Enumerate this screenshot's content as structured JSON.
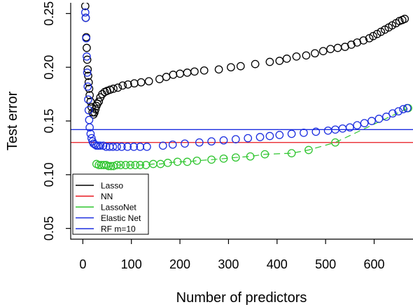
{
  "chart_data": {
    "type": "scatter",
    "title": "",
    "xlabel": "Number of predictors",
    "ylabel": "Test error",
    "xlim": [
      -25,
      680
    ],
    "ylim": [
      0.04,
      0.26
    ],
    "xticks": [
      0,
      100,
      200,
      300,
      400,
      500,
      600
    ],
    "xtick_labels": [
      "0",
      "100",
      "200",
      "300",
      "400",
      "500",
      "600"
    ],
    "yticks": [
      0.05,
      0.1,
      0.15,
      0.2,
      0.25
    ],
    "ytick_labels": [
      "0.05",
      "0.10",
      "0.15",
      "0.20",
      "0.25"
    ],
    "grid": false,
    "legend_position": "bottom-left",
    "series": [
      {
        "name": "Lasso",
        "color": "#000000",
        "marker": "circle",
        "points": [
          [
            5,
            0.257
          ],
          [
            6,
            0.246
          ],
          [
            7,
            0.228
          ],
          [
            8,
            0.218
          ],
          [
            9,
            0.207
          ],
          [
            10,
            0.198
          ],
          [
            11,
            0.192
          ],
          [
            12,
            0.186
          ],
          [
            13,
            0.18
          ],
          [
            14,
            0.174
          ],
          [
            16,
            0.168
          ],
          [
            18,
            0.163
          ],
          [
            20,
            0.158
          ],
          [
            22,
            0.156
          ],
          [
            24,
            0.158
          ],
          [
            26,
            0.161
          ],
          [
            28,
            0.164
          ],
          [
            30,
            0.166
          ],
          [
            33,
            0.168
          ],
          [
            36,
            0.172
          ],
          [
            40,
            0.175
          ],
          [
            45,
            0.177
          ],
          [
            50,
            0.178
          ],
          [
            56,
            0.179
          ],
          [
            63,
            0.18
          ],
          [
            72,
            0.181
          ],
          [
            82,
            0.183
          ],
          [
            93,
            0.184
          ],
          [
            106,
            0.185
          ],
          [
            120,
            0.186
          ],
          [
            136,
            0.187
          ],
          [
            158,
            0.189
          ],
          [
            172,
            0.191
          ],
          [
            186,
            0.193
          ],
          [
            200,
            0.194
          ],
          [
            215,
            0.195
          ],
          [
            230,
            0.196
          ],
          [
            250,
            0.197
          ],
          [
            280,
            0.198
          ],
          [
            305,
            0.2
          ],
          [
            325,
            0.201
          ],
          [
            355,
            0.203
          ],
          [
            385,
            0.205
          ],
          [
            405,
            0.206
          ],
          [
            420,
            0.208
          ],
          [
            440,
            0.21
          ],
          [
            460,
            0.211
          ],
          [
            478,
            0.213
          ],
          [
            495,
            0.215
          ],
          [
            510,
            0.217
          ],
          [
            525,
            0.218
          ],
          [
            540,
            0.219
          ],
          [
            553,
            0.221
          ],
          [
            565,
            0.223
          ],
          [
            578,
            0.225
          ],
          [
            590,
            0.227
          ],
          [
            598,
            0.229
          ],
          [
            606,
            0.231
          ],
          [
            614,
            0.233
          ],
          [
            622,
            0.235
          ],
          [
            630,
            0.237
          ],
          [
            637,
            0.239
          ],
          [
            645,
            0.241
          ],
          [
            652,
            0.243
          ],
          [
            658,
            0.244
          ],
          [
            663,
            0.245
          ]
        ]
      },
      {
        "name": "NN",
        "color": "#e8141b",
        "marker": "hline",
        "y": 0.13
      },
      {
        "name": "LassoNet",
        "color": "#2fc52f",
        "marker": "circle",
        "line": "dashed",
        "points": [
          [
            28,
            0.11
          ],
          [
            33,
            0.109
          ],
          [
            38,
            0.109
          ],
          [
            43,
            0.109
          ],
          [
            48,
            0.109
          ],
          [
            53,
            0.108
          ],
          [
            58,
            0.108
          ],
          [
            63,
            0.108
          ],
          [
            70,
            0.109
          ],
          [
            78,
            0.109
          ],
          [
            88,
            0.109
          ],
          [
            98,
            0.109
          ],
          [
            108,
            0.109
          ],
          [
            118,
            0.109
          ],
          [
            130,
            0.109
          ],
          [
            145,
            0.11
          ],
          [
            160,
            0.11
          ],
          [
            175,
            0.111
          ],
          [
            195,
            0.112
          ],
          [
            215,
            0.112
          ],
          [
            235,
            0.113
          ],
          [
            265,
            0.114
          ],
          [
            290,
            0.115
          ],
          [
            315,
            0.116
          ],
          [
            345,
            0.117
          ],
          [
            375,
            0.119
          ],
          [
            430,
            0.12
          ],
          [
            465,
            0.123
          ],
          [
            520,
            0.13
          ],
          [
            670,
            0.162
          ]
        ]
      },
      {
        "name": "Elastic Net",
        "color": "#1c2ee0",
        "marker": "circle",
        "points": [
          [
            5,
            0.251
          ],
          [
            6,
            0.246
          ],
          [
            7,
            0.227
          ],
          [
            8,
            0.21
          ],
          [
            9,
            0.195
          ],
          [
            10,
            0.182
          ],
          [
            11,
            0.17
          ],
          [
            12,
            0.16
          ],
          [
            13,
            0.151
          ],
          [
            14,
            0.144
          ],
          [
            16,
            0.138
          ],
          [
            18,
            0.134
          ],
          [
            20,
            0.131
          ],
          [
            22,
            0.129
          ],
          [
            25,
            0.128
          ],
          [
            28,
            0.127
          ],
          [
            32,
            0.127
          ],
          [
            36,
            0.127
          ],
          [
            42,
            0.127
          ],
          [
            48,
            0.126
          ],
          [
            55,
            0.126
          ],
          [
            62,
            0.126
          ],
          [
            70,
            0.126
          ],
          [
            80,
            0.126
          ],
          [
            92,
            0.126
          ],
          [
            105,
            0.126
          ],
          [
            118,
            0.126
          ],
          [
            132,
            0.126
          ],
          [
            165,
            0.127
          ],
          [
            185,
            0.128
          ],
          [
            210,
            0.129
          ],
          [
            240,
            0.13
          ],
          [
            265,
            0.131
          ],
          [
            290,
            0.132
          ],
          [
            315,
            0.133
          ],
          [
            340,
            0.134
          ],
          [
            365,
            0.135
          ],
          [
            385,
            0.136
          ],
          [
            405,
            0.137
          ],
          [
            430,
            0.138
          ],
          [
            455,
            0.139
          ],
          [
            480,
            0.14
          ],
          [
            505,
            0.141
          ],
          [
            520,
            0.142
          ],
          [
            535,
            0.143
          ],
          [
            550,
            0.144
          ],
          [
            565,
            0.146
          ],
          [
            580,
            0.148
          ],
          [
            595,
            0.15
          ],
          [
            610,
            0.152
          ],
          [
            625,
            0.154
          ],
          [
            638,
            0.157
          ],
          [
            650,
            0.159
          ],
          [
            660,
            0.161
          ],
          [
            668,
            0.162
          ]
        ]
      },
      {
        "name": "RF m=10",
        "color": "#1c2ee0",
        "marker": "hline",
        "y": 0.142
      }
    ],
    "legend": [
      "Lasso",
      "NN",
      "LassoNet",
      "Elastic Net",
      "RF m=10"
    ]
  }
}
